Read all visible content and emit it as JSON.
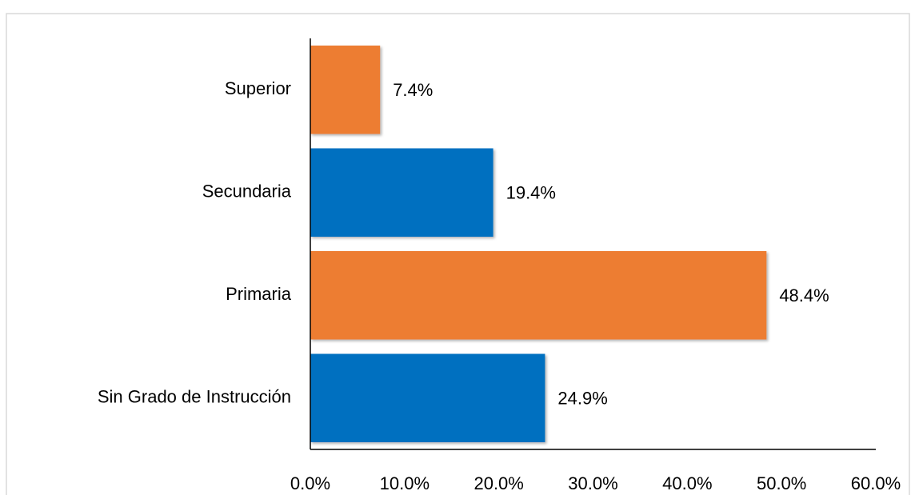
{
  "chart_data": {
    "type": "hbar",
    "categories": [
      "Sin Grado de Instrucción",
      "Primaria",
      "Secundaria",
      "Superior"
    ],
    "values": [
      24.9,
      48.4,
      19.4,
      7.4
    ],
    "value_labels": [
      "24.9%",
      "48.4%",
      "19.4%",
      "7.4%"
    ],
    "colors": [
      "#0070c0",
      "#ed7d31",
      "#0070c0",
      "#ed7d31"
    ],
    "xlim": [
      0,
      60
    ],
    "xticks": [
      {
        "value": 0,
        "label": "0.0%"
      },
      {
        "value": 10,
        "label": "10.0%"
      },
      {
        "value": 20,
        "label": "20.0%"
      },
      {
        "value": 30,
        "label": "30.0%"
      },
      {
        "value": 40,
        "label": "40.0%"
      },
      {
        "value": 50,
        "label": "50.0%"
      },
      {
        "value": 60,
        "label": "60.0%"
      }
    ],
    "grid": false
  }
}
